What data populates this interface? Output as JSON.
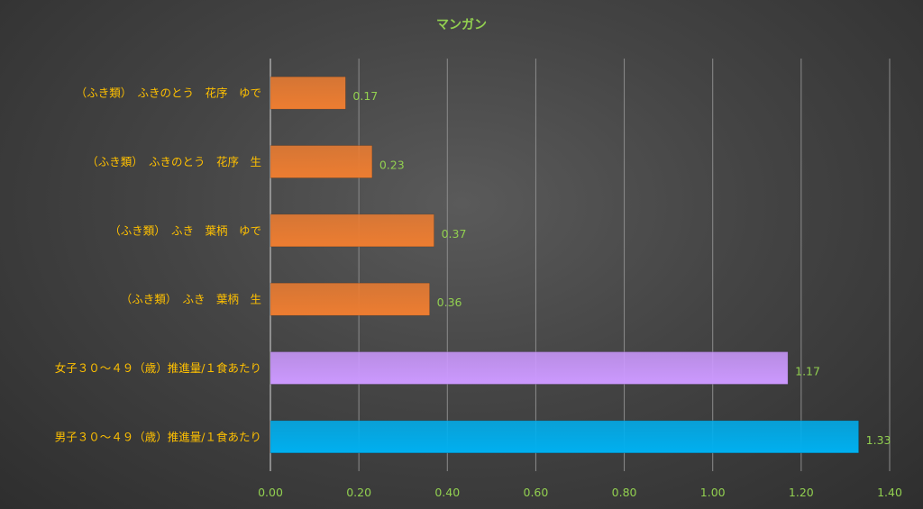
{
  "chart_data": {
    "type": "bar",
    "orientation": "horizontal",
    "title": "マンガン",
    "categories": [
      "（ふき類）　ふきのとう　花序　ゆで",
      "（ふき類）　ふきのとう　花序　生",
      "（ふき類）　ふき　葉柄　ゆで",
      "（ふき類）　ふき　葉柄　生",
      "女子３０～４９（歳）推進量/１食あたり",
      "男子３０～４９（歳）推進量/１食あたり"
    ],
    "values": [
      0.17,
      0.23,
      0.37,
      0.36,
      1.17,
      1.33
    ],
    "data_labels": [
      "0.17",
      "0.23",
      "0.37",
      "0.36",
      "1.17",
      "1.33"
    ],
    "bar_colors": [
      "#ED7D31",
      "#ED7D31",
      "#ED7D31",
      "#ED7D31",
      "#CC99FF",
      "#00B0F0"
    ],
    "xlim": [
      0,
      1.4
    ],
    "xticks": [
      0,
      0.2,
      0.4,
      0.6,
      0.8,
      1.0,
      1.2,
      1.4
    ],
    "xtick_labels": [
      "0.00",
      "0.20",
      "0.40",
      "0.60",
      "0.80",
      "1.00",
      "1.20",
      "1.40"
    ],
    "xlabel": "",
    "ylabel": "",
    "grid": "vertical",
    "legend": "none"
  },
  "colors": {
    "title": "#92D050",
    "category_label": "#FFC000",
    "data_label": "#92D050",
    "tick_label": "#92D050",
    "gridline": "#8C8C8C",
    "axis_line": "#BFBFBF"
  }
}
